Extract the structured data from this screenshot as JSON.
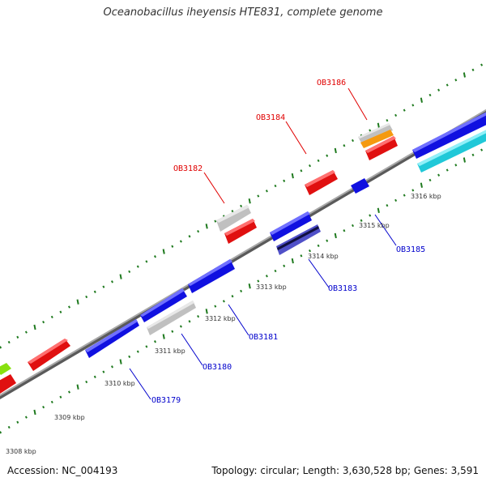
{
  "title": "Oceanobacillus iheyensis HTE831, complete genome",
  "footer": {
    "accession": "Accession: NC_004193",
    "summary": "Topology: circular; Length: 3,630,528 bp; Genes: 3,591"
  },
  "colors": {
    "backbone": "#8a8a8a",
    "tick": "#1f7a1f",
    "forward_label": "#e00000",
    "reverse_label": "#0000cc",
    "red": "#e01010",
    "blue": "#1010e0",
    "gray": "#c0c0c0",
    "orange": "#f59a10",
    "cyan": "#20c8d8",
    "lime": "#88e010",
    "navy": "#202080"
  },
  "tick_labels": [
    "3308 kbp",
    "3309 kbp",
    "3310 kbp",
    "3311 kbp",
    "3312 kbp",
    "3313 kbp",
    "3314 kbp",
    "3315 kbp",
    "3316 kbp"
  ],
  "gene_labels": {
    "forward": [
      "OB3186",
      "OB3184",
      "OB3182"
    ],
    "reverse": [
      "OB3185",
      "OB3183",
      "OB3181",
      "OB3180",
      "OB3179"
    ]
  },
  "features": [
    {
      "name": "feature-lime-partial",
      "color": "lime"
    },
    {
      "name": "feature-red-partial",
      "color": "red"
    },
    {
      "name": "feature-red-1",
      "color": "red"
    },
    {
      "name": "feature-blue-1",
      "color": "blue"
    },
    {
      "name": "feature-blue-ob3181",
      "color": "blue"
    },
    {
      "name": "feature-gray-ob3180",
      "color": "gray"
    },
    {
      "name": "feature-blue-2",
      "color": "blue"
    },
    {
      "name": "feature-gray-ob3182",
      "color": "gray"
    },
    {
      "name": "feature-red-ob3182",
      "color": "red"
    },
    {
      "name": "feature-blue-3",
      "color": "blue"
    },
    {
      "name": "feature-navy-ob3183",
      "color": "navy"
    },
    {
      "name": "feature-red-ob3184",
      "color": "red"
    },
    {
      "name": "feature-blue-ob3185",
      "color": "blue"
    },
    {
      "name": "feature-gray-ob3186",
      "color": "gray"
    },
    {
      "name": "feature-orange-ob3186",
      "color": "orange"
    },
    {
      "name": "feature-red-ob3186",
      "color": "red"
    },
    {
      "name": "feature-blue-4",
      "color": "blue"
    },
    {
      "name": "feature-cyan-1",
      "color": "cyan"
    }
  ]
}
